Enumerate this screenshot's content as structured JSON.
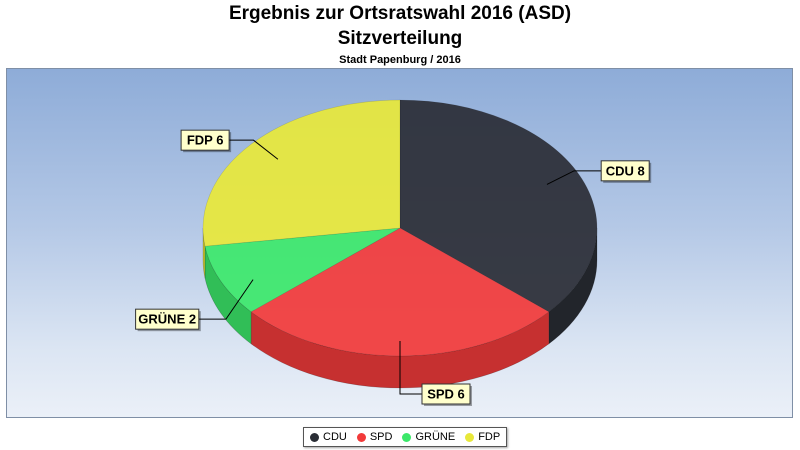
{
  "chart_data": {
    "type": "pie",
    "title": "Ergebnis zur Ortsratswahl 2016 (ASD)",
    "subtitle": "Sitzverteilung",
    "caption": "Stadt Papenburg / 2016",
    "categories": [
      "CDU",
      "SPD",
      "GRÜNE",
      "FDP"
    ],
    "values": [
      8,
      6,
      2,
      6
    ],
    "data_labels": [
      "CDU 8",
      "SPD 6",
      "GRÜNE 2",
      "FDP 6"
    ],
    "colors": [
      "#2a2d35",
      "#f23a3a",
      "#3ce86a",
      "#e8e83a"
    ],
    "legend_position": "bottom",
    "style": "3d"
  }
}
